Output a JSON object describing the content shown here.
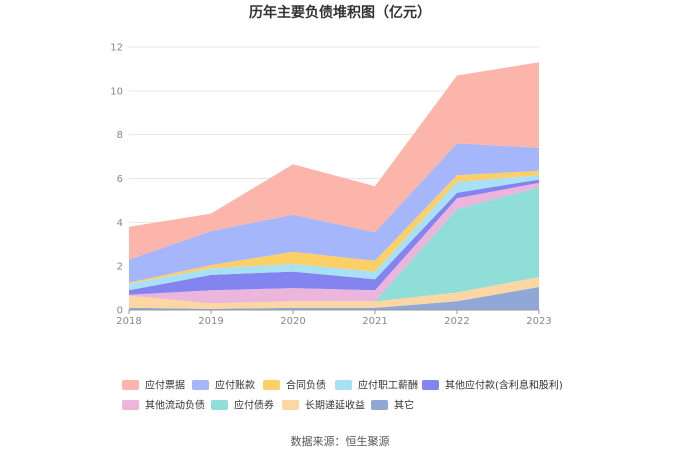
{
  "chart_data": {
    "type": "area",
    "title": "历年主要负债堆积图（亿元）",
    "x": [
      "2018",
      "2019",
      "2020",
      "2021",
      "2022",
      "2023"
    ],
    "ylim": [
      0,
      12
    ],
    "yticks": [
      0,
      2,
      4,
      6,
      8,
      10,
      12
    ],
    "stacked": true,
    "grid": true,
    "legend_position": "bottom",
    "series": [
      {
        "name": "其它",
        "color": "#8fa8d6",
        "values": [
          0.1,
          0.05,
          0.1,
          0.1,
          0.4,
          1.05
        ]
      },
      {
        "name": "长期递延收益",
        "color": "#fcd7a4",
        "values": [
          0.55,
          0.25,
          0.3,
          0.3,
          0.4,
          0.45
        ]
      },
      {
        "name": "应付债券",
        "color": "#8fded8",
        "values": [
          0.0,
          0.0,
          0.0,
          0.0,
          3.8,
          4.1
        ]
      },
      {
        "name": "其他流动负债",
        "color": "#ebb5dc",
        "values": [
          0.05,
          0.6,
          0.6,
          0.5,
          0.5,
          0.2
        ]
      },
      {
        "name": "其他应付款(含利息和股利)",
        "color": "#8484f0",
        "values": [
          0.2,
          0.7,
          0.75,
          0.5,
          0.25,
          0.15
        ]
      },
      {
        "name": "应付职工薪酬",
        "color": "#a8e0f5",
        "values": [
          0.3,
          0.3,
          0.35,
          0.35,
          0.5,
          0.2
        ]
      },
      {
        "name": "合同负债",
        "color": "#fcd067",
        "values": [
          0.05,
          0.15,
          0.55,
          0.5,
          0.3,
          0.2
        ]
      },
      {
        "name": "应付账款",
        "color": "#a5b6fb",
        "values": [
          1.05,
          1.55,
          1.7,
          1.3,
          1.45,
          1.05
        ]
      },
      {
        "name": "应付票据",
        "color": "#fcb5ab",
        "values": [
          1.5,
          0.8,
          2.3,
          2.1,
          3.1,
          3.9
        ]
      }
    ],
    "legend_order": [
      "应付票据",
      "应付账款",
      "合同负债",
      "应付职工薪酬",
      "其他应付款(含利息和股利)",
      "其他流动负债",
      "应付债券",
      "长期递延收益",
      "其它"
    ]
  },
  "footer": {
    "source": "数据来源：恒生聚源"
  }
}
